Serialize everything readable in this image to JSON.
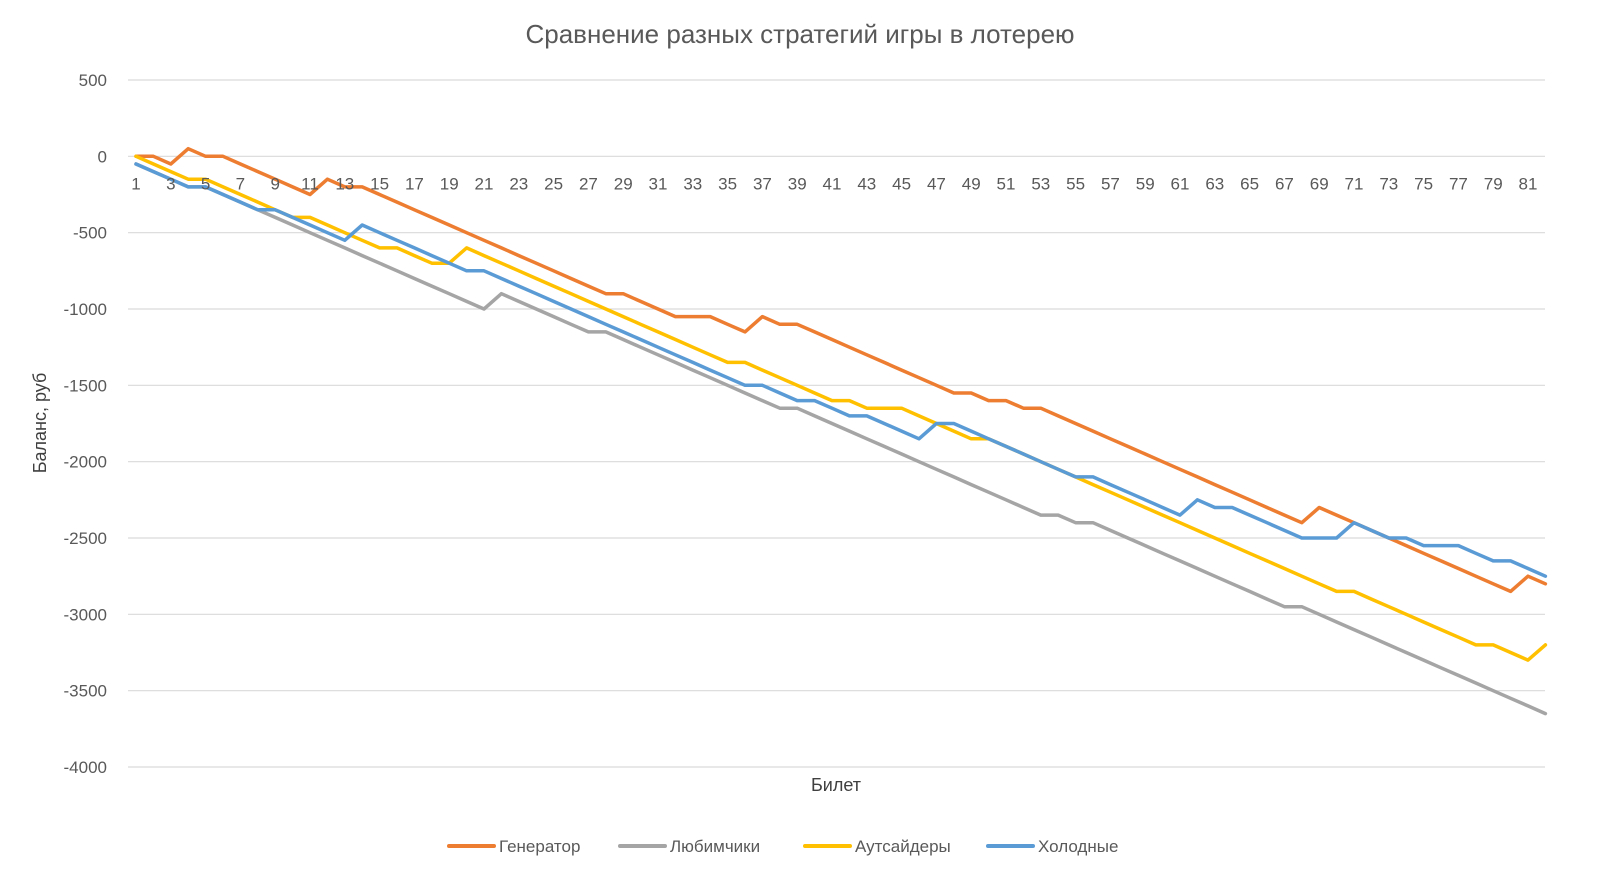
{
  "chart_data": {
    "type": "line",
    "title": "Сравнение разных стратегий игры в лотерею",
    "xlabel": "Билет",
    "ylabel": "Баланс, руб",
    "x": [
      1,
      2,
      3,
      4,
      5,
      6,
      7,
      8,
      9,
      10,
      11,
      12,
      13,
      14,
      15,
      16,
      17,
      18,
      19,
      20,
      21,
      22,
      23,
      24,
      25,
      26,
      27,
      28,
      29,
      30,
      31,
      32,
      33,
      34,
      35,
      36,
      37,
      38,
      39,
      40,
      41,
      42,
      43,
      44,
      45,
      46,
      47,
      48,
      49,
      50,
      51,
      52,
      53,
      54,
      55,
      56,
      57,
      58,
      59,
      60,
      61,
      62,
      63,
      64,
      65,
      66,
      67,
      68,
      69,
      70,
      71,
      72,
      73,
      74,
      75,
      76,
      77,
      78,
      79,
      80,
      81,
      82
    ],
    "x_tick_labels": [
      "1",
      "3",
      "5",
      "7",
      "9",
      "11",
      "13",
      "15",
      "17",
      "19",
      "21",
      "23",
      "25",
      "27",
      "29",
      "31",
      "33",
      "35",
      "37",
      "39",
      "41",
      "43",
      "45",
      "47",
      "49",
      "51",
      "53",
      "55",
      "57",
      "59",
      "61",
      "63",
      "65",
      "67",
      "69",
      "71",
      "73",
      "75",
      "77",
      "79",
      "81"
    ],
    "ylim": [
      -4000,
      500
    ],
    "y_ticks": [
      500,
      0,
      -500,
      -1000,
      -1500,
      -2000,
      -2500,
      -3000,
      -3500,
      -4000
    ],
    "grid": true,
    "legend_position": "bottom",
    "series": [
      {
        "name": "Генератор",
        "color": "#ED7D31",
        "values": [
          0,
          0,
          -50,
          50,
          0,
          0,
          -50,
          -100,
          -150,
          -200,
          -250,
          -150,
          -200,
          -200,
          -250,
          -300,
          -350,
          -400,
          -450,
          -500,
          -550,
          -600,
          -650,
          -700,
          -750,
          -800,
          -850,
          -900,
          -900,
          -950,
          -1000,
          -1050,
          -1050,
          -1050,
          -1100,
          -1150,
          -1050,
          -1100,
          -1100,
          -1150,
          -1200,
          -1250,
          -1300,
          -1350,
          -1400,
          -1450,
          -1500,
          -1550,
          -1550,
          -1600,
          -1600,
          -1650,
          -1650,
          -1700,
          -1750,
          -1800,
          -1850,
          -1900,
          -1950,
          -2000,
          -2050,
          -2100,
          -2150,
          -2200,
          -2250,
          -2300,
          -2350,
          -2400,
          -2300,
          -2350,
          -2400,
          -2450,
          -2500,
          -2550,
          -2600,
          -2650,
          -2700,
          -2750,
          -2800,
          -2850,
          -2750,
          -2800
        ]
      },
      {
        "name": "Любимчики",
        "color": "#A5A5A5",
        "values": [
          -50,
          -100,
          -150,
          -200,
          -200,
          -250,
          -300,
          -350,
          -400,
          -450,
          -500,
          -550,
          -600,
          -650,
          -700,
          -750,
          -800,
          -850,
          -900,
          -950,
          -1000,
          -900,
          -950,
          -1000,
          -1050,
          -1100,
          -1150,
          -1150,
          -1200,
          -1250,
          -1300,
          -1350,
          -1400,
          -1450,
          -1500,
          -1550,
          -1600,
          -1650,
          -1650,
          -1700,
          -1750,
          -1800,
          -1850,
          -1900,
          -1950,
          -2000,
          -2050,
          -2100,
          -2150,
          -2200,
          -2250,
          -2300,
          -2350,
          -2350,
          -2400,
          -2400,
          -2450,
          -2500,
          -2550,
          -2600,
          -2650,
          -2700,
          -2750,
          -2800,
          -2850,
          -2900,
          -2950,
          -2950,
          -3000,
          -3050,
          -3100,
          -3150,
          -3200,
          -3250,
          -3300,
          -3350,
          -3400,
          -3450,
          -3500,
          -3550,
          -3600,
          -3650
        ]
      },
      {
        "name": "Аутсайдеры",
        "color": "#FFC000",
        "values": [
          0,
          -50,
          -100,
          -150,
          -150,
          -200,
          -250,
          -300,
          -350,
          -400,
          -400,
          -450,
          -500,
          -550,
          -600,
          -600,
          -650,
          -700,
          -700,
          -600,
          -650,
          -700,
          -750,
          -800,
          -850,
          -900,
          -950,
          -1000,
          -1050,
          -1100,
          -1150,
          -1200,
          -1250,
          -1300,
          -1350,
          -1350,
          -1400,
          -1450,
          -1500,
          -1550,
          -1600,
          -1600,
          -1650,
          -1650,
          -1650,
          -1700,
          -1750,
          -1800,
          -1850,
          -1850,
          -1900,
          -1950,
          -2000,
          -2050,
          -2100,
          -2150,
          -2200,
          -2250,
          -2300,
          -2350,
          -2400,
          -2450,
          -2500,
          -2550,
          -2600,
          -2650,
          -2700,
          -2750,
          -2800,
          -2850,
          -2850,
          -2900,
          -2950,
          -3000,
          -3050,
          -3100,
          -3150,
          -3200,
          -3200,
          -3250,
          -3300,
          -3200
        ]
      },
      {
        "name": "Холодные",
        "color": "#5B9BD5",
        "values": [
          -50,
          -100,
          -150,
          -200,
          -200,
          -250,
          -300,
          -350,
          -350,
          -400,
          -450,
          -500,
          -550,
          -450,
          -500,
          -550,
          -600,
          -650,
          -700,
          -750,
          -750,
          -800,
          -850,
          -900,
          -950,
          -1000,
          -1050,
          -1100,
          -1150,
          -1200,
          -1250,
          -1300,
          -1350,
          -1400,
          -1450,
          -1500,
          -1500,
          -1550,
          -1600,
          -1600,
          -1650,
          -1700,
          -1700,
          -1750,
          -1800,
          -1850,
          -1750,
          -1750,
          -1800,
          -1850,
          -1900,
          -1950,
          -2000,
          -2050,
          -2100,
          -2100,
          -2150,
          -2200,
          -2250,
          -2300,
          -2350,
          -2250,
          -2300,
          -2300,
          -2350,
          -2400,
          -2450,
          -2500,
          -2500,
          -2500,
          -2400,
          -2450,
          -2500,
          -2500,
          -2550,
          -2550,
          -2550,
          -2600,
          -2650,
          -2650,
          -2700,
          -2750
        ]
      }
    ]
  }
}
